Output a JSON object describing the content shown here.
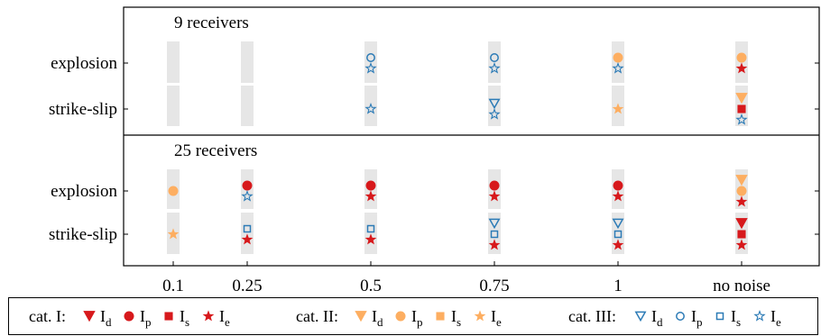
{
  "chart_data": {
    "type": "scatter",
    "title": "",
    "xlabel": "",
    "ylabel": "",
    "x_categories": [
      "0.1",
      "0.25",
      "0.5",
      "0.75",
      "1",
      "no noise"
    ],
    "panels": [
      {
        "title": "9 receivers",
        "rows": [
          {
            "label": "explosion",
            "cells": [
              [],
              [],
              [
                "III_p",
                "III_e"
              ],
              [
                "III_p",
                "III_e"
              ],
              [
                "II_p",
                "III_e"
              ],
              [
                "II_p",
                "I_e"
              ]
            ]
          },
          {
            "label": "strike-slip",
            "cells": [
              [],
              [],
              [
                "III_e"
              ],
              [
                "III_d",
                "III_e"
              ],
              [
                "II_e"
              ],
              [
                "II_d",
                "I_s",
                "III_e"
              ]
            ]
          }
        ]
      },
      {
        "title": "25 receivers",
        "rows": [
          {
            "label": "explosion",
            "cells": [
              [
                "II_p"
              ],
              [
                "I_p",
                "III_e"
              ],
              [
                "I_p",
                "I_e"
              ],
              [
                "I_p",
                "I_e"
              ],
              [
                "I_p",
                "I_e"
              ],
              [
                "II_d",
                "II_p",
                "I_e"
              ]
            ]
          },
          {
            "label": "strike-slip",
            "cells": [
              [
                "II_e"
              ],
              [
                "III_s",
                "I_e"
              ],
              [
                "III_s",
                "I_e"
              ],
              [
                "III_d",
                "III_s",
                "I_e"
              ],
              [
                "III_d",
                "III_s",
                "I_e"
              ],
              [
                "I_d",
                "I_s",
                "I_e"
              ]
            ]
          }
        ]
      }
    ],
    "legend": {
      "categories": [
        {
          "id": "I",
          "label": "cat. I:",
          "style": "filled",
          "color": "#d7191c"
        },
        {
          "id": "II",
          "label": "cat. II:",
          "style": "filled",
          "color": "#fdae61"
        },
        {
          "id": "III",
          "label": "cat. III:",
          "style": "open",
          "color": "#2c7bb6"
        }
      ],
      "markers": [
        {
          "key": "d",
          "shape": "triangle-down",
          "base": "I",
          "sub": "d"
        },
        {
          "key": "p",
          "shape": "circle",
          "base": "I",
          "sub": "p"
        },
        {
          "key": "s",
          "shape": "square",
          "base": "I",
          "sub": "s"
        },
        {
          "key": "e",
          "shape": "star",
          "base": "I",
          "sub": "e"
        }
      ]
    },
    "colors": {
      "band": "#e6e6e6",
      "cat_I": "#d7191c",
      "cat_II": "#fdae61",
      "cat_III": "#2c7bb6"
    }
  }
}
